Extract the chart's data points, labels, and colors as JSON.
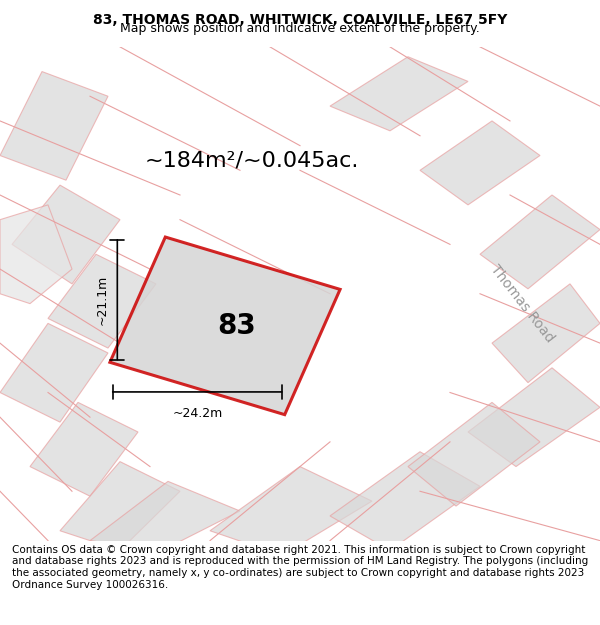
{
  "title": "83, THOMAS ROAD, WHITWICK, COALVILLE, LE67 5FY",
  "subtitle": "Map shows position and indicative extent of the property.",
  "area_text": "~184m²/~0.045ac.",
  "width_label": "~24.2m",
  "height_label": "~21.1m",
  "plot_number": "83",
  "road_label": "Thomas Road",
  "footer_text": "Contains OS data © Crown copyright and database right 2021. This information is subject to Crown copyright and database rights 2023 and is reproduced with the permission of HM Land Registry. The polygons (including the associated geometry, namely x, y co-ordinates) are subject to Crown copyright and database rights 2023 Ordnance Survey 100026316.",
  "bg_color": "#f5f5f5",
  "map_bg": "#f0eeee",
  "building_fill": "#d8d8d8",
  "building_edge": "#b0b0b0",
  "plot_fill": "#d8d8d8",
  "plot_edge_color": "#cc0000",
  "bg_lines_color": "#e8a0a0",
  "title_fontsize": 10,
  "subtitle_fontsize": 9,
  "area_fontsize": 16,
  "number_fontsize": 20,
  "footer_fontsize": 7.5,
  "road_label_fontsize": 10,
  "dim_fontsize": 9
}
